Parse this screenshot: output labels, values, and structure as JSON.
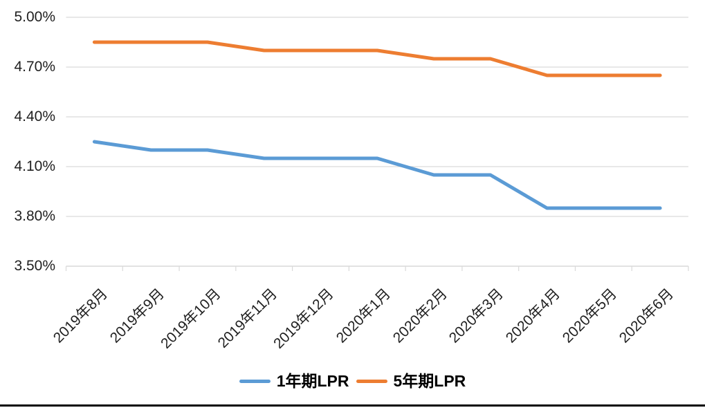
{
  "chart_data": {
    "type": "line",
    "title": "",
    "xlabel": "",
    "ylabel": "",
    "categories": [
      "2019年8月",
      "2019年9月",
      "2019年10月",
      "2019年11月",
      "2019年12月",
      "2020年1月",
      "2020年2月",
      "2020年3月",
      "2020年4月",
      "2020年5月",
      "2020年6月"
    ],
    "series": [
      {
        "name": "1年期LPR",
        "color": "#5B9BD5",
        "values": [
          4.25,
          4.2,
          4.2,
          4.15,
          4.15,
          4.15,
          4.05,
          4.05,
          3.85,
          3.85,
          3.85
        ]
      },
      {
        "name": "5年期LPR",
        "color": "#ED7D31",
        "values": [
          4.85,
          4.85,
          4.85,
          4.8,
          4.8,
          4.8,
          4.75,
          4.75,
          4.65,
          4.65,
          4.65
        ]
      }
    ],
    "y_axis": {
      "min": 3.5,
      "max": 5.0,
      "step": 0.3,
      "tick_values": [
        5.0,
        4.7,
        4.4,
        4.1,
        3.8,
        3.5
      ],
      "tick_labels": [
        "5.00%",
        "4.70%",
        "4.40%",
        "4.10%",
        "3.80%",
        "3.50%"
      ]
    },
    "grid": true,
    "legend_position": "bottom",
    "colors": {
      "gridline": "#D9D9D9",
      "axis_text": "#1f1f1f",
      "legend_text": "#000000",
      "bottom_rule": "#000000",
      "background": "#ffffff"
    }
  }
}
